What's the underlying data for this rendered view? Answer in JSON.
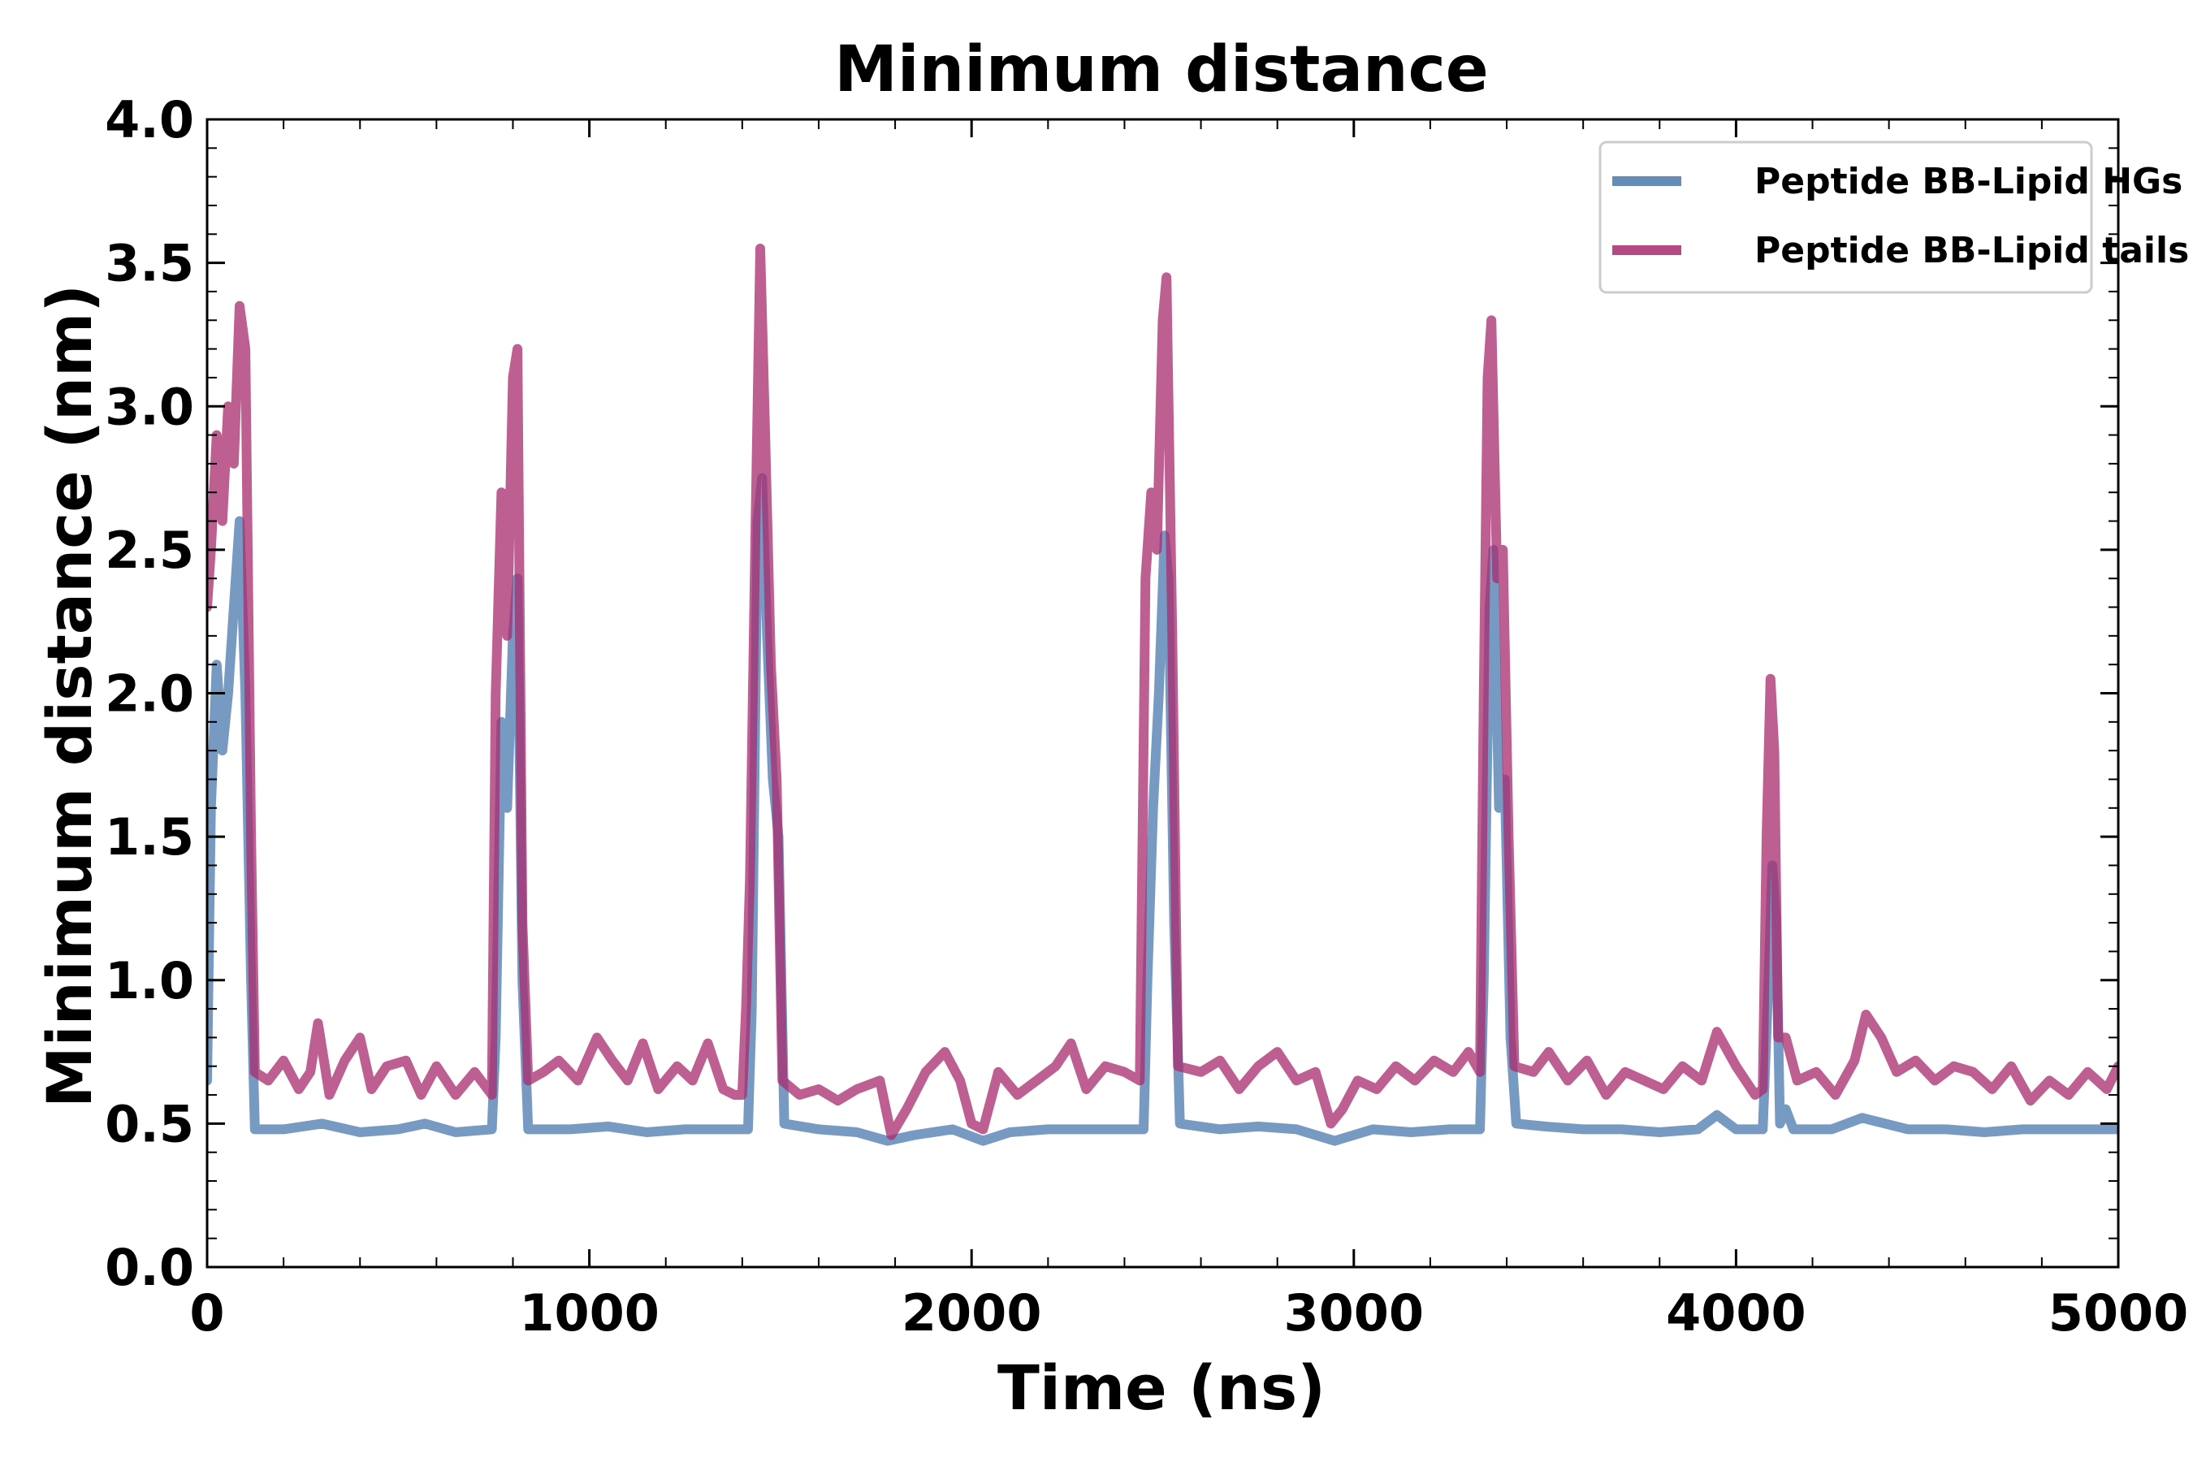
{
  "chart_data": {
    "type": "line",
    "title": "Minimum distance",
    "xlabel": "Time (ns)",
    "ylabel": "Minimum distance (nm)",
    "xlim": [
      0,
      5000
    ],
    "ylim": [
      0.0,
      4.0
    ],
    "xticks": [
      0,
      1000,
      2000,
      3000,
      4000,
      5000
    ],
    "xtick_labels": [
      "0",
      "1000",
      "2000",
      "3000",
      "4000",
      "5000"
    ],
    "yticks": [
      0.0,
      0.5,
      1.0,
      1.5,
      2.0,
      2.5,
      3.0,
      3.5,
      4.0
    ],
    "ytick_labels": [
      "0.0",
      "0.5",
      "1.0",
      "1.5",
      "2.0",
      "2.5",
      "3.0",
      "3.5",
      "4.0"
    ],
    "legend_position": "top-right",
    "grid": false,
    "series": [
      {
        "name": "Peptide BB-Lipid HGs",
        "color": "#4a78ad",
        "points": [
          [
            0,
            0.65
          ],
          [
            10,
            1.6
          ],
          [
            25,
            2.1
          ],
          [
            40,
            1.8
          ],
          [
            55,
            2.0
          ],
          [
            70,
            2.3
          ],
          [
            85,
            2.6
          ],
          [
            100,
            2.0
          ],
          [
            115,
            1.0
          ],
          [
            125,
            0.48
          ],
          [
            200,
            0.48
          ],
          [
            300,
            0.5
          ],
          [
            400,
            0.47
          ],
          [
            500,
            0.48
          ],
          [
            570,
            0.5
          ],
          [
            650,
            0.47
          ],
          [
            745,
            0.48
          ],
          [
            755,
            0.8
          ],
          [
            770,
            1.9
          ],
          [
            785,
            1.6
          ],
          [
            800,
            2.2
          ],
          [
            812,
            2.4
          ],
          [
            825,
            1.0
          ],
          [
            840,
            0.48
          ],
          [
            950,
            0.48
          ],
          [
            1050,
            0.49
          ],
          [
            1150,
            0.47
          ],
          [
            1250,
            0.48
          ],
          [
            1350,
            0.48
          ],
          [
            1415,
            0.48
          ],
          [
            1425,
            0.9
          ],
          [
            1440,
            2.6
          ],
          [
            1452,
            2.75
          ],
          [
            1465,
            2.2
          ],
          [
            1480,
            1.7
          ],
          [
            1495,
            1.5
          ],
          [
            1510,
            0.5
          ],
          [
            1600,
            0.48
          ],
          [
            1700,
            0.47
          ],
          [
            1780,
            0.44
          ],
          [
            1850,
            0.46
          ],
          [
            1950,
            0.48
          ],
          [
            2030,
            0.44
          ],
          [
            2100,
            0.47
          ],
          [
            2200,
            0.48
          ],
          [
            2300,
            0.48
          ],
          [
            2400,
            0.48
          ],
          [
            2450,
            0.48
          ],
          [
            2460,
            1.0
          ],
          [
            2475,
            1.6
          ],
          [
            2490,
            2.0
          ],
          [
            2505,
            2.55
          ],
          [
            2515,
            2.4
          ],
          [
            2530,
            1.2
          ],
          [
            2545,
            0.5
          ],
          [
            2650,
            0.48
          ],
          [
            2750,
            0.49
          ],
          [
            2850,
            0.48
          ],
          [
            2950,
            0.44
          ],
          [
            3050,
            0.48
          ],
          [
            3150,
            0.47
          ],
          [
            3250,
            0.48
          ],
          [
            3330,
            0.48
          ],
          [
            3340,
            1.0
          ],
          [
            3355,
            2.3
          ],
          [
            3365,
            2.5
          ],
          [
            3380,
            1.6
          ],
          [
            3395,
            1.7
          ],
          [
            3410,
            0.8
          ],
          [
            3425,
            0.5
          ],
          [
            3500,
            0.49
          ],
          [
            3600,
            0.48
          ],
          [
            3700,
            0.48
          ],
          [
            3800,
            0.47
          ],
          [
            3900,
            0.48
          ],
          [
            3950,
            0.53
          ],
          [
            4000,
            0.48
          ],
          [
            4070,
            0.48
          ],
          [
            4085,
            1.0
          ],
          [
            4095,
            1.4
          ],
          [
            4105,
            1.2
          ],
          [
            4115,
            0.5
          ],
          [
            4130,
            0.55
          ],
          [
            4150,
            0.48
          ],
          [
            4250,
            0.48
          ],
          [
            4330,
            0.52
          ],
          [
            4450,
            0.48
          ],
          [
            4550,
            0.48
          ],
          [
            4650,
            0.47
          ],
          [
            4750,
            0.48
          ],
          [
            4850,
            0.48
          ],
          [
            4950,
            0.48
          ],
          [
            5000,
            0.48
          ]
        ]
      },
      {
        "name": "Peptide BB-Lipid tails",
        "color": "#a8296d",
        "points": [
          [
            0,
            2.3
          ],
          [
            10,
            2.5
          ],
          [
            25,
            2.9
          ],
          [
            40,
            2.6
          ],
          [
            55,
            3.0
          ],
          [
            70,
            2.8
          ],
          [
            85,
            3.35
          ],
          [
            100,
            3.2
          ],
          [
            115,
            1.5
          ],
          [
            125,
            0.68
          ],
          [
            160,
            0.65
          ],
          [
            200,
            0.72
          ],
          [
            240,
            0.62
          ],
          [
            270,
            0.68
          ],
          [
            290,
            0.85
          ],
          [
            320,
            0.6
          ],
          [
            360,
            0.72
          ],
          [
            400,
            0.8
          ],
          [
            430,
            0.62
          ],
          [
            470,
            0.7
          ],
          [
            520,
            0.72
          ],
          [
            560,
            0.6
          ],
          [
            600,
            0.7
          ],
          [
            650,
            0.6
          ],
          [
            700,
            0.68
          ],
          [
            745,
            0.6
          ],
          [
            755,
            2.0
          ],
          [
            770,
            2.7
          ],
          [
            785,
            2.2
          ],
          [
            800,
            3.1
          ],
          [
            812,
            3.2
          ],
          [
            825,
            1.2
          ],
          [
            840,
            0.65
          ],
          [
            880,
            0.68
          ],
          [
            920,
            0.72
          ],
          [
            970,
            0.65
          ],
          [
            1020,
            0.8
          ],
          [
            1060,
            0.72
          ],
          [
            1100,
            0.65
          ],
          [
            1140,
            0.78
          ],
          [
            1180,
            0.62
          ],
          [
            1230,
            0.7
          ],
          [
            1270,
            0.65
          ],
          [
            1310,
            0.78
          ],
          [
            1350,
            0.62
          ],
          [
            1380,
            0.6
          ],
          [
            1400,
            0.6
          ],
          [
            1410,
            0.9
          ],
          [
            1420,
            1.35
          ],
          [
            1435,
            2.6
          ],
          [
            1447,
            3.55
          ],
          [
            1460,
            2.9
          ],
          [
            1475,
            2.1
          ],
          [
            1490,
            1.7
          ],
          [
            1505,
            0.65
          ],
          [
            1550,
            0.6
          ],
          [
            1600,
            0.62
          ],
          [
            1650,
            0.58
          ],
          [
            1700,
            0.62
          ],
          [
            1760,
            0.65
          ],
          [
            1790,
            0.46
          ],
          [
            1830,
            0.55
          ],
          [
            1880,
            0.68
          ],
          [
            1930,
            0.75
          ],
          [
            1970,
            0.65
          ],
          [
            2000,
            0.5
          ],
          [
            2030,
            0.48
          ],
          [
            2070,
            0.68
          ],
          [
            2120,
            0.6
          ],
          [
            2170,
            0.65
          ],
          [
            2220,
            0.7
          ],
          [
            2260,
            0.78
          ],
          [
            2300,
            0.62
          ],
          [
            2350,
            0.7
          ],
          [
            2400,
            0.68
          ],
          [
            2440,
            0.65
          ],
          [
            2455,
            2.4
          ],
          [
            2470,
            2.7
          ],
          [
            2485,
            2.5
          ],
          [
            2500,
            3.3
          ],
          [
            2510,
            3.45
          ],
          [
            2525,
            2.2
          ],
          [
            2540,
            0.7
          ],
          [
            2600,
            0.68
          ],
          [
            2650,
            0.72
          ],
          [
            2700,
            0.62
          ],
          [
            2750,
            0.7
          ],
          [
            2800,
            0.75
          ],
          [
            2850,
            0.65
          ],
          [
            2900,
            0.68
          ],
          [
            2940,
            0.5
          ],
          [
            2970,
            0.55
          ],
          [
            3010,
            0.65
          ],
          [
            3060,
            0.62
          ],
          [
            3110,
            0.7
          ],
          [
            3160,
            0.65
          ],
          [
            3210,
            0.72
          ],
          [
            3260,
            0.68
          ],
          [
            3300,
            0.75
          ],
          [
            3330,
            0.68
          ],
          [
            3340,
            2.0
          ],
          [
            3350,
            3.1
          ],
          [
            3360,
            3.3
          ],
          [
            3375,
            2.4
          ],
          [
            3390,
            2.5
          ],
          [
            3405,
            1.5
          ],
          [
            3420,
            0.7
          ],
          [
            3470,
            0.68
          ],
          [
            3510,
            0.75
          ],
          [
            3560,
            0.65
          ],
          [
            3610,
            0.72
          ],
          [
            3660,
            0.6
          ],
          [
            3710,
            0.68
          ],
          [
            3760,
            0.65
          ],
          [
            3810,
            0.62
          ],
          [
            3860,
            0.7
          ],
          [
            3910,
            0.65
          ],
          [
            3950,
            0.82
          ],
          [
            4000,
            0.7
          ],
          [
            4050,
            0.6
          ],
          [
            4070,
            0.62
          ],
          [
            4080,
            1.5
          ],
          [
            4090,
            2.05
          ],
          [
            4100,
            1.8
          ],
          [
            4110,
            0.8
          ],
          [
            4130,
            0.8
          ],
          [
            4160,
            0.65
          ],
          [
            4210,
            0.68
          ],
          [
            4260,
            0.6
          ],
          [
            4310,
            0.72
          ],
          [
            4340,
            0.88
          ],
          [
            4380,
            0.8
          ],
          [
            4420,
            0.68
          ],
          [
            4470,
            0.72
          ],
          [
            4520,
            0.65
          ],
          [
            4570,
            0.7
          ],
          [
            4620,
            0.68
          ],
          [
            4670,
            0.62
          ],
          [
            4720,
            0.7
          ],
          [
            4770,
            0.58
          ],
          [
            4820,
            0.65
          ],
          [
            4870,
            0.6
          ],
          [
            4920,
            0.68
          ],
          [
            4970,
            0.62
          ],
          [
            5000,
            0.7
          ]
        ]
      }
    ]
  }
}
